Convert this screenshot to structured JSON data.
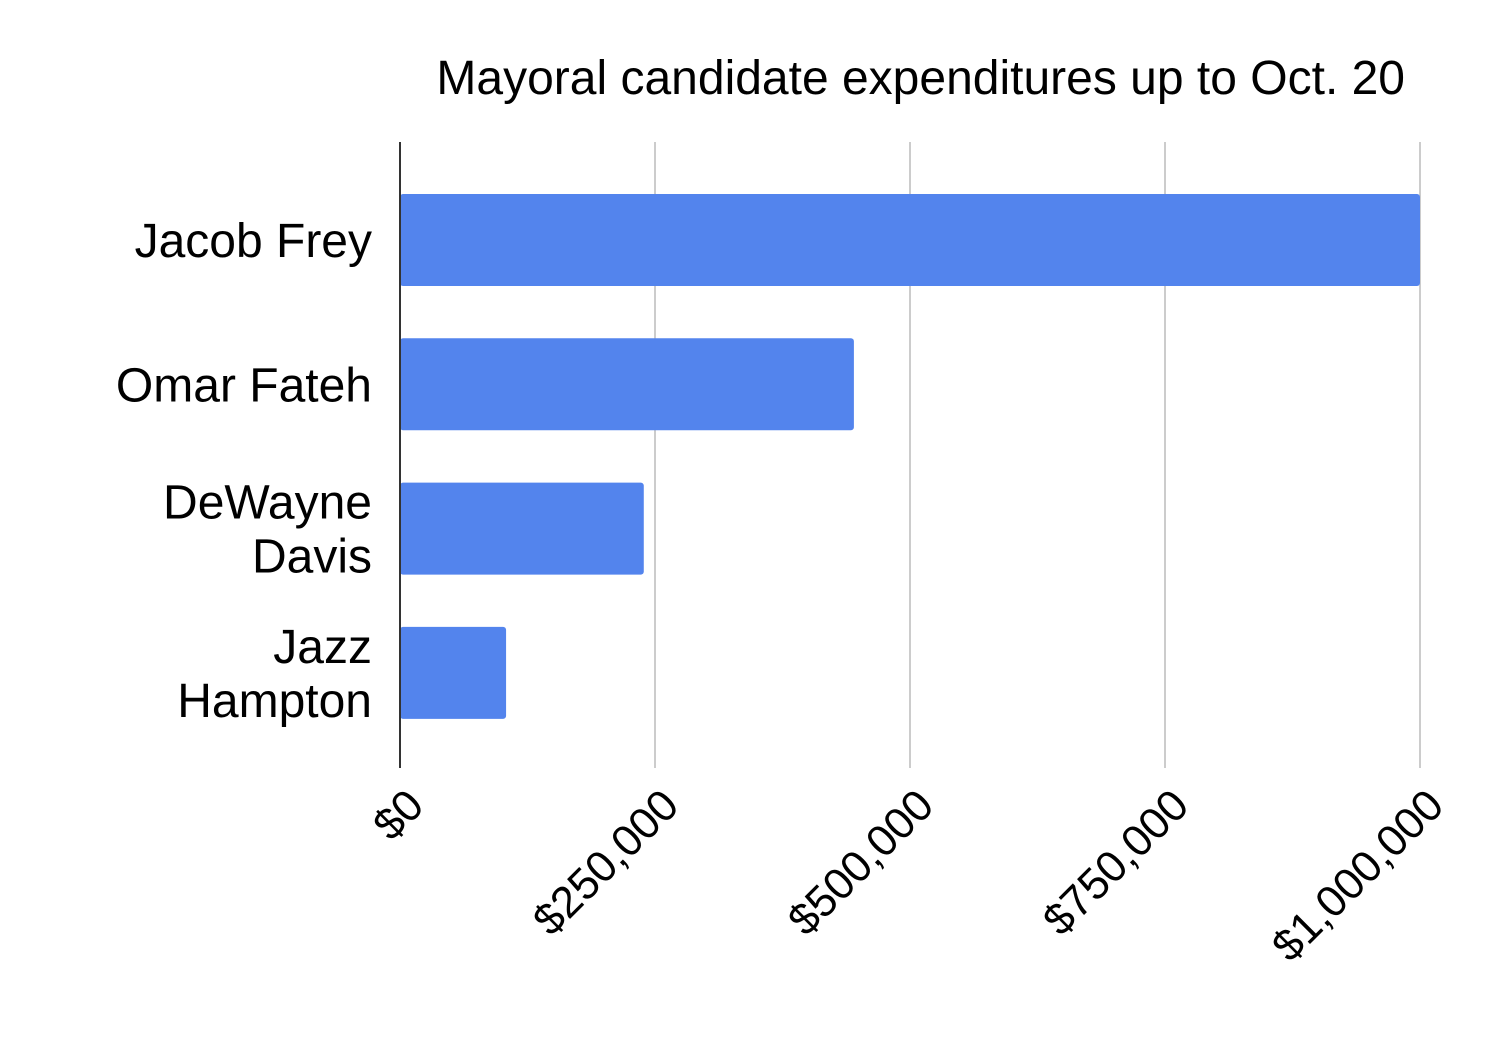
{
  "chart_data": {
    "type": "bar",
    "orientation": "horizontal",
    "title": "Mayoral candidate expenditures up to Oct. 20",
    "categories": [
      [
        "Jacob Frey"
      ],
      [
        "Omar Fateh"
      ],
      [
        "DeWayne",
        "Davis"
      ],
      [
        "Jazz",
        "Hampton"
      ]
    ],
    "values": [
      1000000,
      445000,
      239000,
      104000
    ],
    "xlim": [
      0,
      1000000
    ],
    "x_ticks": [
      0,
      250000,
      500000,
      750000,
      1000000
    ],
    "x_tick_labels": [
      "$0",
      "$250,000",
      "$500,000",
      "$750,000",
      "$1,000,000"
    ],
    "xlabel": "",
    "ylabel": "",
    "grid": "vertical",
    "legend": "none",
    "bar_color": "#5384ed",
    "grid_color": "#cccccc",
    "axis_color": "#333333"
  }
}
